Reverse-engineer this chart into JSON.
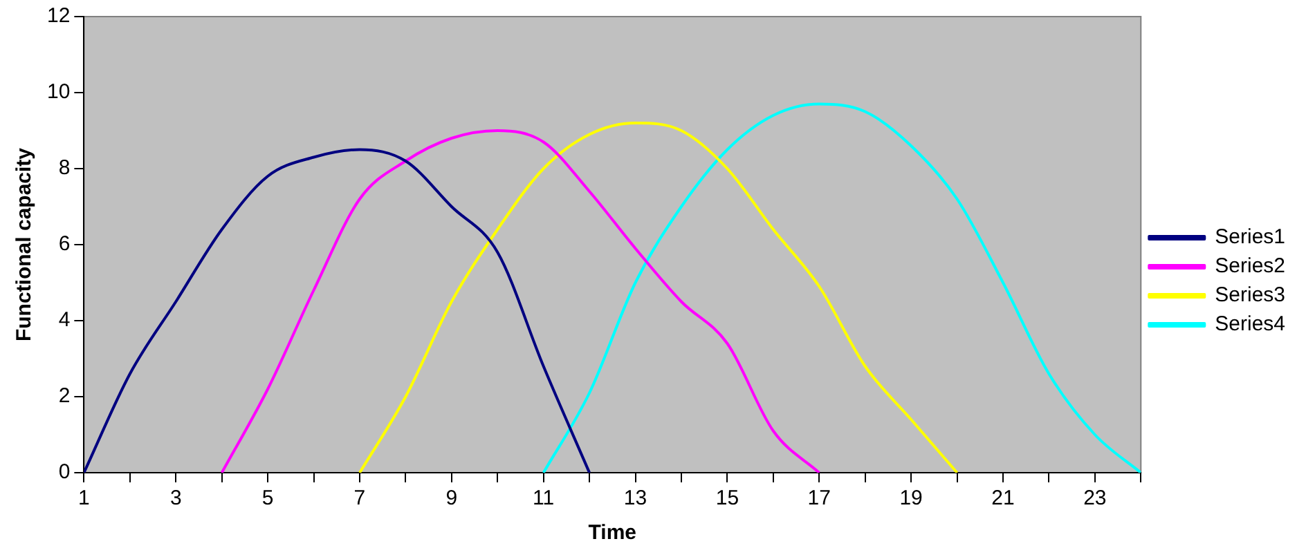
{
  "chart_data": {
    "type": "line",
    "xlabel": "Time",
    "ylabel": "Functional capacity",
    "xlim": [
      1,
      24
    ],
    "xticks": [
      1,
      {
        "value": 2,
        "label": null
      },
      3,
      {
        "value": 4,
        "label": null
      },
      5,
      {
        "value": 6,
        "label": null
      },
      7,
      {
        "value": 8,
        "label": null
      },
      9,
      {
        "value": 10,
        "label": null
      },
      11,
      {
        "value": 12,
        "label": null
      },
      13,
      {
        "value": 14,
        "label": null
      },
      15,
      {
        "value": 16,
        "label": null
      },
      17,
      {
        "value": 18,
        "label": null
      },
      19,
      {
        "value": 20,
        "label": null
      },
      21,
      {
        "value": 22,
        "label": null
      },
      23,
      {
        "value": 24,
        "label": null
      }
    ],
    "ylim": [
      0,
      12
    ],
    "yticks": [
      0,
      2,
      4,
      6,
      8,
      10,
      12
    ],
    "grid": false,
    "legend": "right",
    "marker": "none",
    "line_style": "solid",
    "series": [
      {
        "name": "Series1",
        "color": "#000080",
        "x": [
          1,
          2,
          3,
          4,
          5,
          6,
          7,
          8,
          9,
          10,
          11,
          12
        ],
        "values": [
          0,
          2.6,
          4.5,
          6.4,
          7.8,
          8.3,
          8.5,
          8.2,
          7.0,
          5.8,
          2.8,
          0
        ]
      },
      {
        "name": "Series2",
        "color": "#ff00ff",
        "x": [
          4,
          5,
          6,
          7,
          8,
          9,
          10,
          11,
          12,
          13,
          14,
          15,
          16,
          17
        ],
        "values": [
          0,
          2.2,
          4.8,
          7.2,
          8.2,
          8.8,
          9.0,
          8.7,
          7.4,
          5.9,
          4.5,
          3.4,
          1.1,
          0
        ]
      },
      {
        "name": "Series3",
        "color": "#ffff00",
        "x": [
          7,
          8,
          9,
          10,
          11,
          12,
          13,
          14,
          15,
          16,
          17,
          18,
          19,
          20
        ],
        "values": [
          0,
          2.0,
          4.5,
          6.4,
          8.0,
          8.9,
          9.2,
          9.0,
          8.0,
          6.4,
          4.9,
          2.8,
          1.4,
          0
        ]
      },
      {
        "name": "Series4",
        "color": "#00ffff",
        "x": [
          11,
          12,
          13,
          14,
          15,
          16,
          17,
          18,
          19,
          20,
          21,
          22,
          23,
          24
        ],
        "values": [
          0,
          2.1,
          5.0,
          7.0,
          8.5,
          9.4,
          9.7,
          9.5,
          8.6,
          7.2,
          5.0,
          2.6,
          1.0,
          0
        ]
      }
    ]
  }
}
